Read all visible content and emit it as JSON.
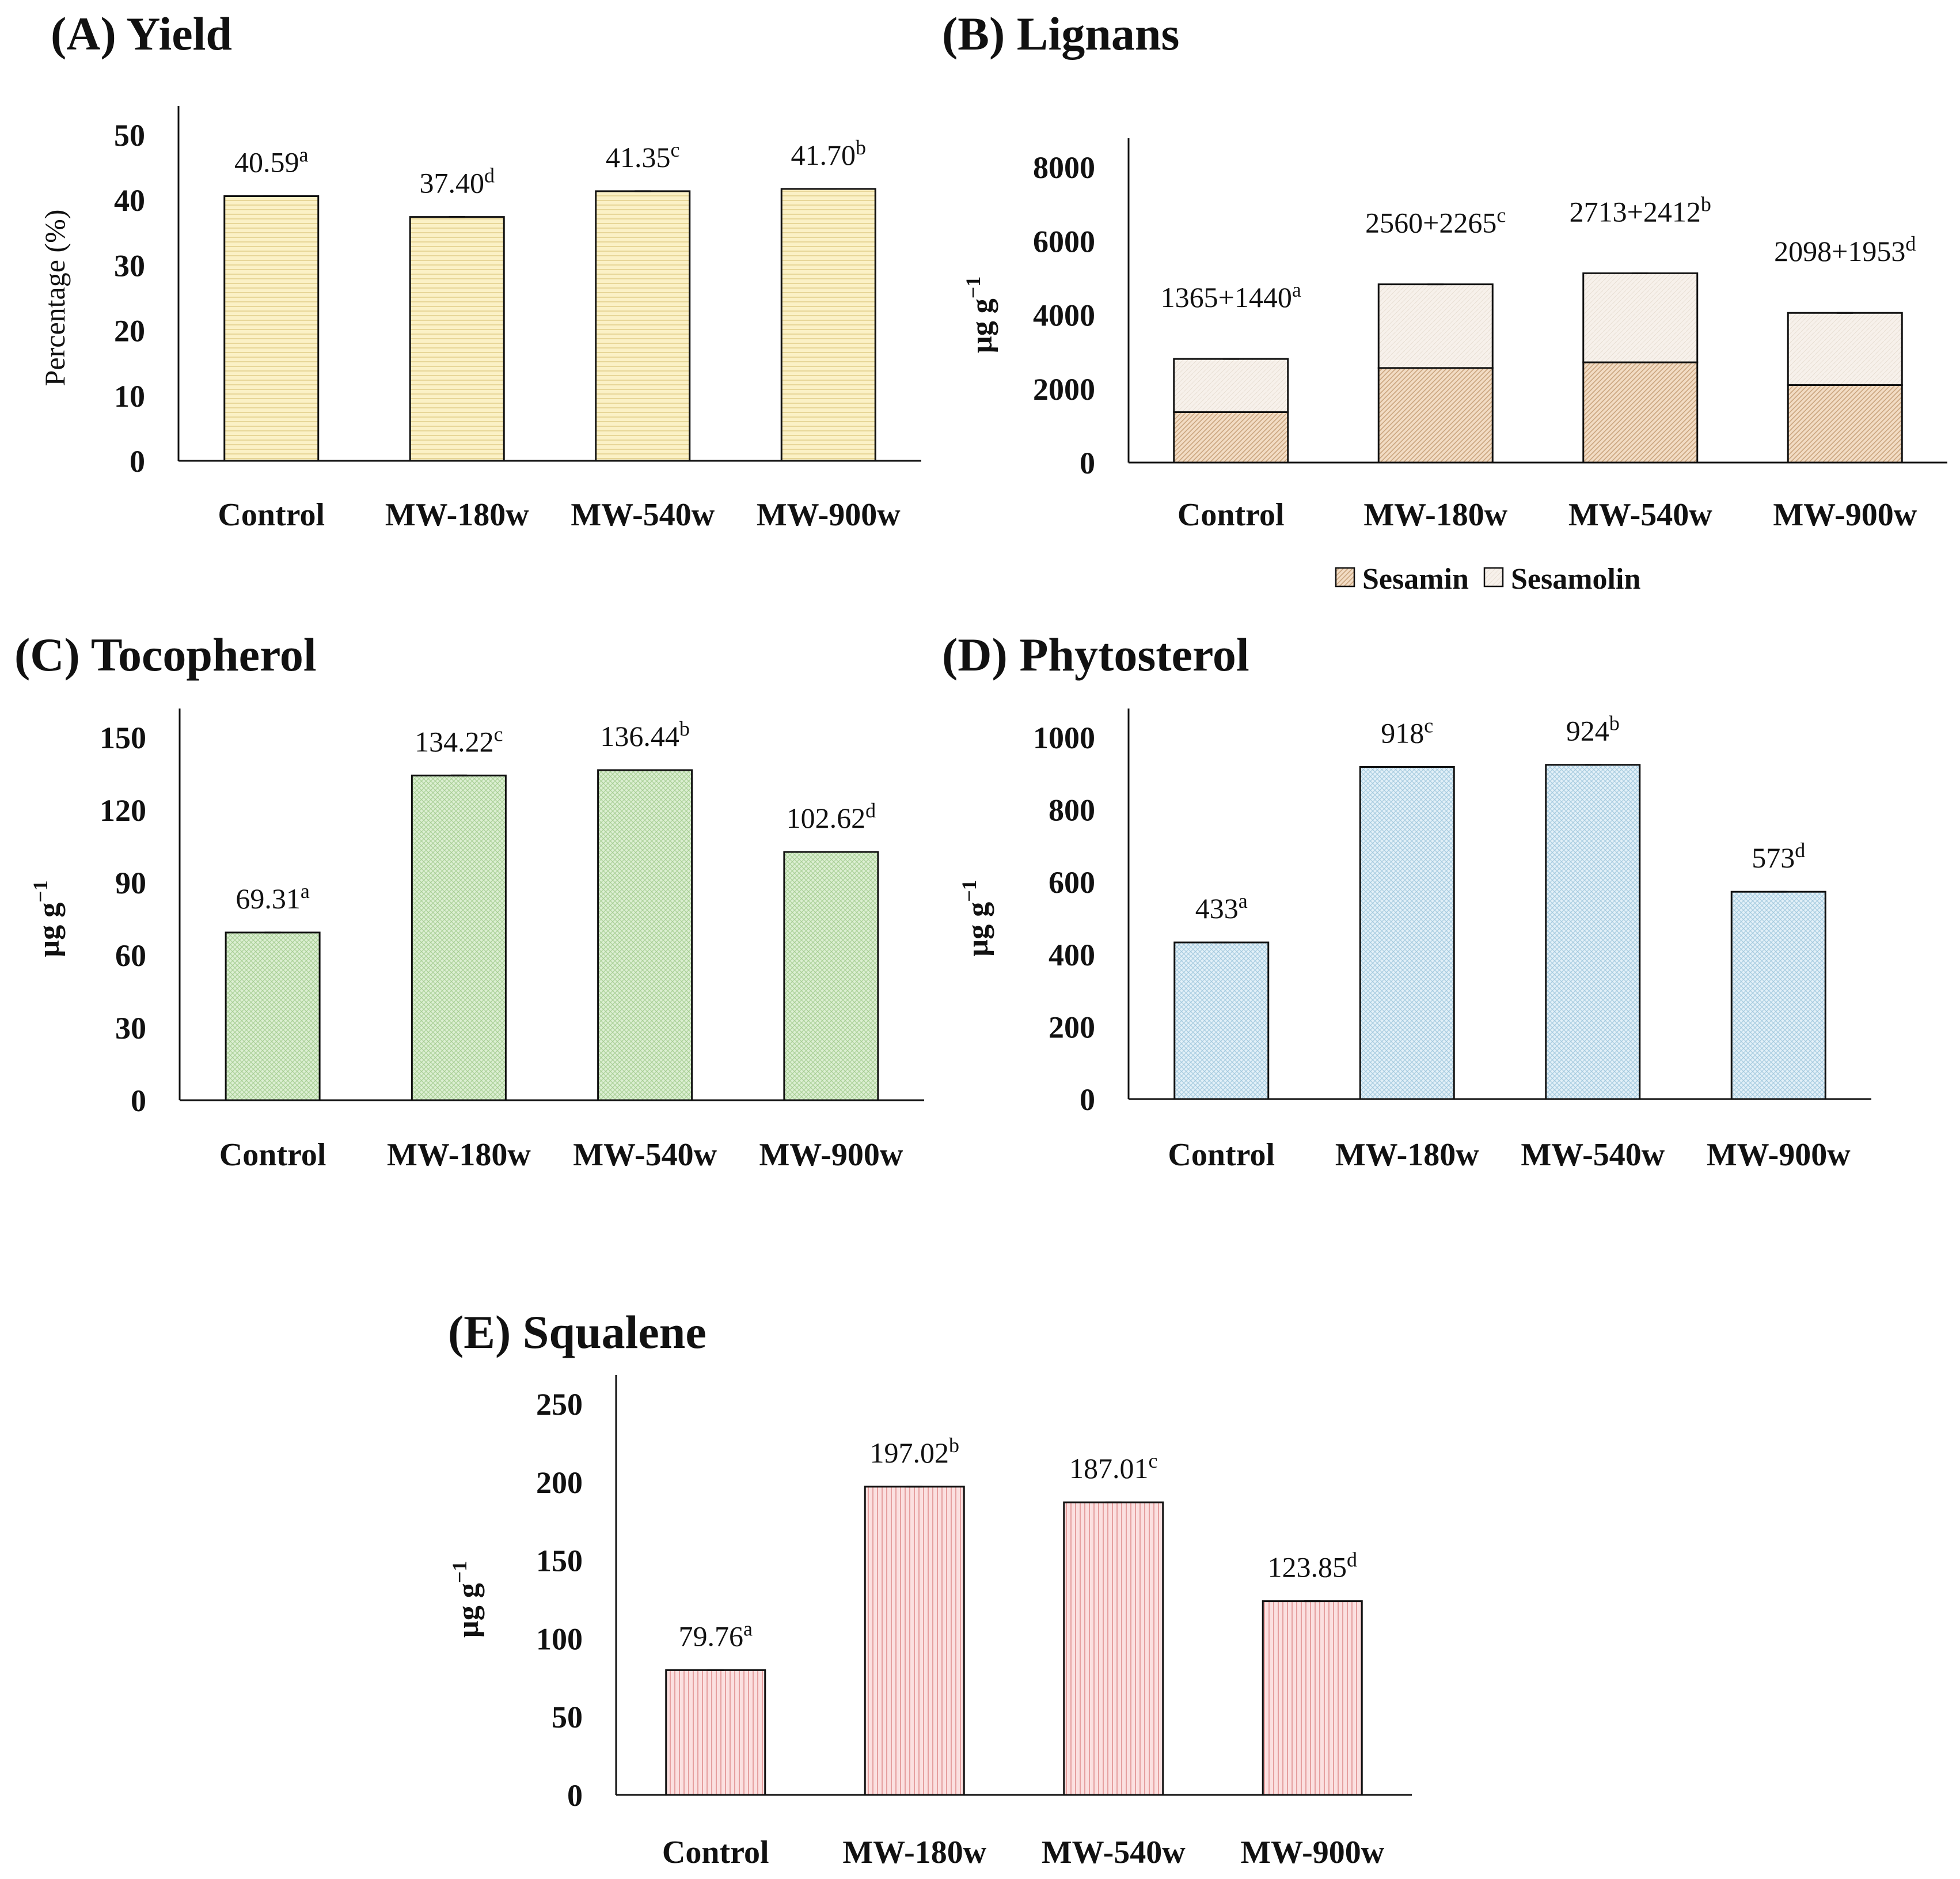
{
  "chart_data": [
    {
      "id": "A",
      "type": "bar",
      "title": "(A) Yield",
      "ylabel": "Percentage (%)",
      "ylim": [
        0,
        50
      ],
      "yticks": [
        "0",
        "10",
        "20",
        "30",
        "40",
        "50"
      ],
      "categories": [
        "Control",
        "MW-180w",
        "MW-540w",
        "MW-900w"
      ],
      "values": [
        40.59,
        37.4,
        41.35,
        41.7
      ],
      "labels": [
        {
          "text": "40.59",
          "sup": "a"
        },
        {
          "text": "37.40",
          "sup": "d"
        },
        {
          "text": "41.35",
          "sup": "c"
        },
        {
          "text": "41.70",
          "sup": "b"
        }
      ],
      "color": "#fbf1c6",
      "hatch": "#e2cf8c"
    },
    {
      "id": "B",
      "type": "bar",
      "stacked": true,
      "title": "(B) Lignans",
      "ylabel": "µg g",
      "ylabel_sup": "−1",
      "ylim": [
        0,
        8000
      ],
      "yticks": [
        "0",
        "2000",
        "4000",
        "6000",
        "8000"
      ],
      "categories": [
        "Control",
        "MW-180w",
        "MW-540w",
        "MW-900w"
      ],
      "series": [
        {
          "name": "Sesamin",
          "values": [
            1365,
            2560,
            2713,
            2098
          ],
          "color": "#f2dcc4",
          "hatch": "#caa47e"
        },
        {
          "name": "Sesamolin",
          "values": [
            1440,
            2265,
            2412,
            1953
          ],
          "color": "#f7f1eb",
          "hatch": "#e6dcd0"
        }
      ],
      "labels": [
        {
          "text": "1365+1440",
          "sup": "a"
        },
        {
          "text": "2560+2265",
          "sup": "c"
        },
        {
          "text": "2713+2412",
          "sup": "b"
        },
        {
          "text": "2098+1953",
          "sup": "d"
        }
      ],
      "legend": "bottom"
    },
    {
      "id": "C",
      "type": "bar",
      "title": "(C) Tocopherol",
      "ylabel": "µg g",
      "ylabel_sup": "−1",
      "ylim": [
        0,
        150
      ],
      "yticks": [
        "0",
        "30",
        "60",
        "90",
        "120",
        "150"
      ],
      "categories": [
        "Control",
        "MW-180w",
        "MW-540w",
        "MW-900w"
      ],
      "values": [
        69.31,
        134.22,
        136.44,
        102.62
      ],
      "labels": [
        {
          "text": "69.31",
          "sup": "a"
        },
        {
          "text": "134.22",
          "sup": "c"
        },
        {
          "text": "136.44",
          "sup": "b"
        },
        {
          "text": "102.62",
          "sup": "d"
        }
      ],
      "color": "#dcefd2",
      "hatch": "#a9cf96"
    },
    {
      "id": "D",
      "type": "bar",
      "title": "(D) Phytosterol",
      "ylabel": "µg g",
      "ylabel_sup": "−1",
      "ylim": [
        0,
        1000
      ],
      "yticks": [
        "0",
        "200",
        "400",
        "600",
        "800",
        "1000"
      ],
      "categories": [
        "Control",
        "MW-180w",
        "MW-540w",
        "MW-900w"
      ],
      "values": [
        433,
        918,
        924,
        573
      ],
      "labels": [
        {
          "text": "433",
          "sup": "a"
        },
        {
          "text": "918",
          "sup": "c"
        },
        {
          "text": "924",
          "sup": "b"
        },
        {
          "text": "573",
          "sup": "d"
        }
      ],
      "color": "#e2f0f8",
      "hatch": "#a6cbe0"
    },
    {
      "id": "E",
      "type": "bar",
      "title": "(E) Squalene",
      "ylabel": "µg g",
      "ylabel_sup": "−1",
      "ylim": [
        0,
        250
      ],
      "yticks": [
        "0",
        "50",
        "100",
        "150",
        "200",
        "250"
      ],
      "categories": [
        "Control",
        "MW-180w",
        "MW-540w",
        "MW-900w"
      ],
      "values": [
        79.76,
        197.02,
        187.01,
        123.85
      ],
      "labels": [
        {
          "text": "79.76",
          "sup": "a"
        },
        {
          "text": "197.02",
          "sup": "b"
        },
        {
          "text": "187.01",
          "sup": "c"
        },
        {
          "text": "123.85",
          "sup": "d"
        }
      ],
      "color": "#fbe0e0",
      "hatch": "#e08f8f"
    }
  ]
}
